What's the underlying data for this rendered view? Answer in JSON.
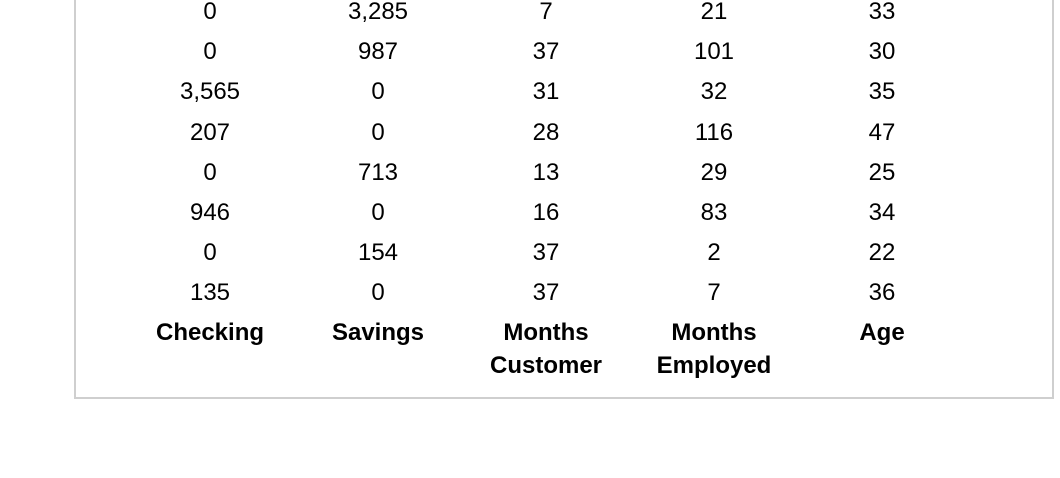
{
  "table": {
    "headers": [
      [
        "Checking"
      ],
      [
        "Savings"
      ],
      [
        "Months",
        "Customer"
      ],
      [
        "Months",
        "Employed"
      ],
      [
        "Age"
      ]
    ],
    "rows": [
      [
        "0",
        "3,285",
        "7",
        "21",
        "33"
      ],
      [
        "0",
        "987",
        "37",
        "101",
        "30"
      ],
      [
        "3,565",
        "0",
        "31",
        "32",
        "35"
      ],
      [
        "207",
        "0",
        "28",
        "116",
        "47"
      ],
      [
        "0",
        "713",
        "13",
        "29",
        "25"
      ],
      [
        "946",
        "0",
        "16",
        "83",
        "34"
      ],
      [
        "0",
        "154",
        "37",
        "2",
        "22"
      ],
      [
        "135",
        "0",
        "37",
        "7",
        "36"
      ]
    ]
  }
}
